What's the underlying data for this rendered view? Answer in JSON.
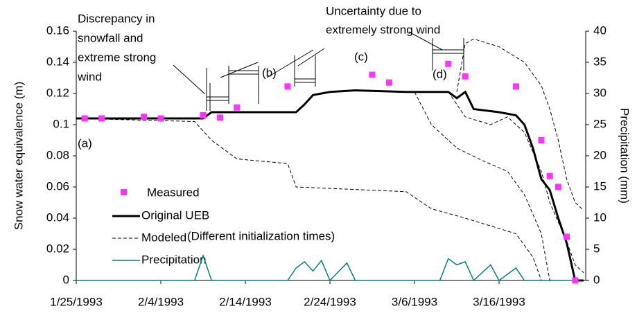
{
  "chart_data": {
    "type": "line",
    "y_label": "Snow water equivalence (m)",
    "y2_label": "Precipitation (mm)",
    "xlim": [
      "1993-01-25",
      "1993-03-26"
    ],
    "xticks": [
      {
        "value": "1993-01-25",
        "label": "1/25/1993"
      },
      {
        "value": "1993-02-04",
        "label": "2/4/1993"
      },
      {
        "value": "1993-02-14",
        "label": "2/14/1993"
      },
      {
        "value": "1993-02-24",
        "label": "2/24/1993"
      },
      {
        "value": "1993-03-06",
        "label": "3/6/1993"
      },
      {
        "value": "1993-03-16",
        "label": "3/16/1993"
      }
    ],
    "ylim": [
      0,
      0.16
    ],
    "yticks": [
      0,
      0.02,
      0.04,
      0.06,
      0.08,
      0.1,
      0.12,
      0.14,
      0.16
    ],
    "y2lim": [
      0,
      40
    ],
    "y2ticks": [
      0,
      5,
      10,
      15,
      20,
      25,
      30,
      35,
      40
    ],
    "measured": {
      "name": "Measured",
      "color": "#ff33ff",
      "x": [
        "1993-01-26",
        "1993-01-28",
        "1993-02-02",
        "1993-02-04",
        "1993-02-09",
        "1993-02-11",
        "1993-02-13",
        "1993-02-19",
        "1993-03-01",
        "1993-03-03",
        "1993-03-10",
        "1993-03-12",
        "1993-03-18",
        "1993-03-21",
        "1993-03-22",
        "1993-03-23",
        "1993-03-24",
        "1993-03-25"
      ],
      "values": [
        0.104,
        0.104,
        0.105,
        0.104,
        0.106,
        0.1045,
        0.111,
        0.1245,
        0.132,
        0.127,
        0.139,
        0.131,
        0.1245,
        0.09,
        0.067,
        0.06,
        0.028,
        0
      ]
    },
    "original": {
      "name": "Original UEB",
      "color": "#000000",
      "x": [
        "1993-01-25",
        "1993-02-09",
        "1993-02-10",
        "1993-02-20",
        "1993-02-21",
        "1993-02-22",
        "1993-02-24",
        "1993-02-27",
        "1993-03-05",
        "1993-03-10",
        "1993-03-11",
        "1993-03-12",
        "1993-03-13",
        "1993-03-16",
        "1993-03-18",
        "1993-03-19",
        "1993-03-20",
        "1993-03-21",
        "1993-03-22",
        "1993-03-23",
        "1993-03-24",
        "1993-03-25",
        "1993-03-26"
      ],
      "values": [
        0.104,
        0.104,
        0.108,
        0.108,
        0.113,
        0.119,
        0.121,
        0.122,
        0.121,
        0.121,
        0.117,
        0.121,
        0.11,
        0.108,
        0.106,
        0.1,
        0.085,
        0.065,
        0.058,
        0.04,
        0.024,
        0,
        0
      ]
    },
    "modeled": {
      "name": "Modeled",
      "note": "(Different initialization times)",
      "color": "#000000",
      "runs": [
        {
          "x": [
            "1993-01-25",
            "1993-02-08",
            "1993-02-10",
            "1993-02-13",
            "1993-02-19",
            "1993-02-20",
            "1993-03-05",
            "1993-03-08",
            "1993-03-12",
            "1993-03-18",
            "1993-03-20",
            "1993-03-21"
          ],
          "values": [
            0.104,
            0.102,
            0.09,
            0.078,
            0.075,
            0.06,
            0.057,
            0.046,
            0.04,
            0.03,
            0.015,
            0
          ]
        },
        {
          "x": [
            "1993-03-06",
            "1993-03-08",
            "1993-03-11",
            "1993-03-14",
            "1993-03-17",
            "1993-03-19",
            "1993-03-21",
            "1993-03-22"
          ],
          "values": [
            0.121,
            0.1,
            0.085,
            0.077,
            0.07,
            0.055,
            0.03,
            0
          ]
        },
        {
          "x": [
            "1993-03-10",
            "1993-03-12",
            "1993-03-15",
            "1993-03-17",
            "1993-03-19",
            "1993-03-21",
            "1993-03-22",
            "1993-03-24",
            "1993-03-25",
            "1993-03-26"
          ],
          "values": [
            0.121,
            0.105,
            0.1,
            0.105,
            0.095,
            0.07,
            0.05,
            0.025,
            0.01,
            0.005
          ]
        },
        {
          "x": [
            "1993-03-11",
            "1993-03-12",
            "1993-03-13",
            "1993-03-16",
            "1993-03-19",
            "1993-03-21",
            "1993-03-22",
            "1993-03-23",
            "1993-03-24",
            "1993-03-25",
            "1993-03-26"
          ],
          "values": [
            0.121,
            0.152,
            0.155,
            0.15,
            0.14,
            0.125,
            0.11,
            0.09,
            0.065,
            0.05,
            0.045
          ]
        }
      ]
    },
    "precipitation": {
      "name": "Precipitation",
      "color": "#008080",
      "axis": "y2",
      "x": [
        "1993-01-25",
        "1993-02-08",
        "1993-02-09",
        "1993-02-10",
        "1993-02-19",
        "1993-02-20",
        "1993-02-21",
        "1993-02-22",
        "1993-02-23",
        "1993-02-24",
        "1993-02-26",
        "1993-02-27",
        "1993-03-09",
        "1993-03-10",
        "1993-03-11",
        "1993-03-12",
        "1993-03-13",
        "1993-03-15",
        "1993-03-16",
        "1993-03-18",
        "1993-03-19",
        "1993-03-26"
      ],
      "values": [
        0,
        0,
        4,
        0,
        0,
        2,
        3,
        1.5,
        3.2,
        0,
        2.8,
        0,
        0,
        3.5,
        2.5,
        3,
        0,
        2.5,
        0,
        2,
        0,
        0
      ]
    },
    "annotations": [
      {
        "lines": [
          "Discrepancy in",
          "snowfall and",
          "extreme strong",
          "wind"
        ]
      },
      {
        "lines": [
          "Uncertainty due to",
          "extremely strong wind"
        ]
      },
      {
        "lines": [
          "(a)"
        ]
      },
      {
        "lines": [
          "(b)"
        ]
      },
      {
        "lines": [
          "(c)"
        ]
      },
      {
        "lines": [
          "(d)"
        ]
      }
    ]
  }
}
